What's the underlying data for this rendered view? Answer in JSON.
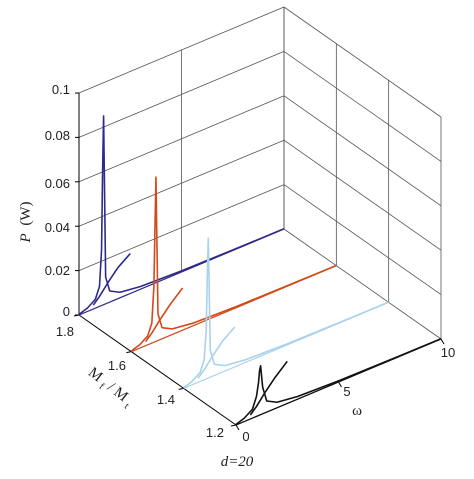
{
  "chart_data": {
    "type": "line",
    "title": "",
    "caption": "d=20",
    "zlabel": "P (W)",
    "zlabel_var": "P",
    "zlabel_unit": "(W)",
    "ylabel": "M_f/M_t",
    "ylabel_parts": {
      "M1": "M",
      "sub1": "f",
      "slash": "/",
      "M2": "M",
      "sub2": "t"
    },
    "xlabel": "ω",
    "z_ticks": [
      "0",
      "0.02",
      "0.04",
      "0.06",
      "0.08",
      "0.1"
    ],
    "y_ticks": [
      "1.2",
      "1.4",
      "1.6",
      "1.8"
    ],
    "x_ticks": [
      "0",
      "5",
      "10"
    ],
    "xlim": [
      0,
      10
    ],
    "ylim": [
      1.2,
      1.8
    ],
    "zlim": [
      0,
      0.1
    ],
    "grid": true,
    "colors": {
      "grid": "#555555",
      "axis": "#000000"
    },
    "series": [
      {
        "y_value": 1.8,
        "color": "#2e2a8a",
        "main_curve": {
          "omega": [
            0,
            0.4,
            0.8,
            1.0,
            1.1,
            1.15,
            1.2,
            1.3,
            1.5,
            2.0,
            3.0,
            5.0,
            8.0,
            10.0
          ],
          "power": [
            0.0003,
            0.0015,
            0.004,
            0.009,
            0.025,
            0.06,
            0.085,
            0.012,
            0.005,
            0.0025,
            0.0012,
            0.0005,
            0.0002,
            0.0001
          ]
        },
        "branch_curve": {
          "omega": [
            0.7,
            1.0,
            1.4,
            1.9,
            2.5
          ],
          "power": [
            0.0018,
            0.0045,
            0.009,
            0.014,
            0.018
          ]
        }
      },
      {
        "y_value": 1.6,
        "color": "#d04a1a",
        "main_curve": {
          "omega": [
            0,
            0.4,
            0.8,
            1.0,
            1.1,
            1.15,
            1.2,
            1.3,
            1.5,
            2.0,
            3.0,
            5.0,
            8.0,
            10.0
          ],
          "power": [
            0.0003,
            0.0015,
            0.004,
            0.009,
            0.025,
            0.05,
            0.074,
            0.012,
            0.005,
            0.0025,
            0.0012,
            0.0005,
            0.0002,
            0.0001
          ]
        },
        "branch_curve": {
          "omega": [
            0.7,
            1.0,
            1.4,
            1.9,
            2.5
          ],
          "power": [
            0.0018,
            0.0045,
            0.009,
            0.014,
            0.019
          ]
        }
      },
      {
        "y_value": 1.4,
        "color": "#a9d3ea",
        "main_curve": {
          "omega": [
            0,
            0.4,
            0.8,
            1.0,
            1.1,
            1.15,
            1.2,
            1.3,
            1.5,
            2.0,
            3.0,
            5.0,
            8.0,
            10.0
          ],
          "power": [
            0.0003,
            0.0015,
            0.004,
            0.009,
            0.022,
            0.045,
            0.063,
            0.012,
            0.005,
            0.0025,
            0.0012,
            0.0005,
            0.0002,
            0.0001
          ]
        },
        "branch_curve": {
          "omega": [
            0.7,
            1.0,
            1.4,
            1.9,
            2.5
          ],
          "power": [
            0.0018,
            0.0045,
            0.009,
            0.014,
            0.018
          ]
        }
      },
      {
        "y_value": 1.2,
        "color": "#111111",
        "main_curve": {
          "omega": [
            0,
            0.4,
            0.8,
            1.0,
            1.1,
            1.15,
            1.2,
            1.3,
            1.5,
            2.0,
            3.0,
            5.0,
            8.0,
            10.0
          ],
          "power": [
            0.0003,
            0.0015,
            0.004,
            0.009,
            0.015,
            0.02,
            0.022,
            0.012,
            0.005,
            0.0025,
            0.0012,
            0.0005,
            0.0002,
            0.0001
          ]
        },
        "branch_curve": {
          "omega": [
            0.7,
            1.0,
            1.4,
            1.9,
            2.5
          ],
          "power": [
            0.0018,
            0.0045,
            0.009,
            0.014,
            0.019
          ]
        }
      }
    ]
  }
}
